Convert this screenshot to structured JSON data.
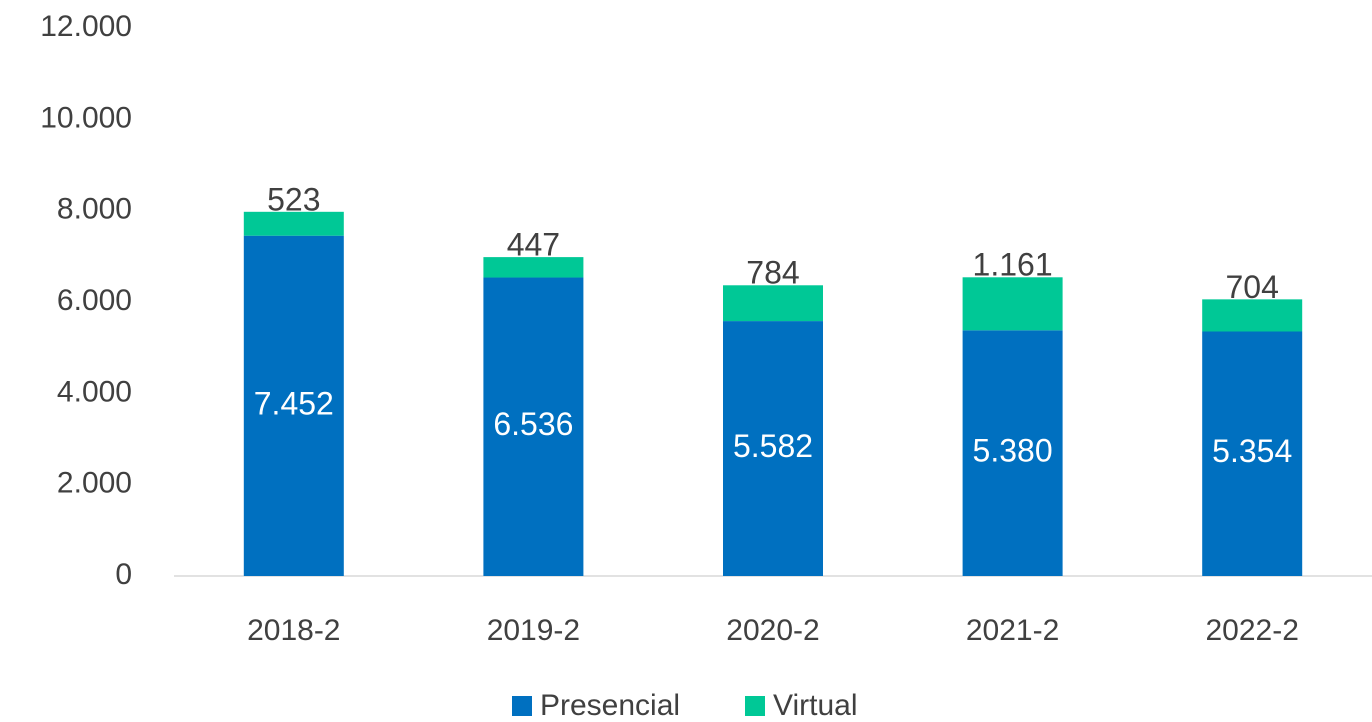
{
  "chart_data": {
    "type": "stacked_bar",
    "categories": [
      "2018-2",
      "2019-2",
      "2020-2",
      "2021-2",
      "2022-2"
    ],
    "series": [
      {
        "name": "Presencial",
        "color": "#0070c0",
        "values": [
          7452,
          6536,
          5582,
          5380,
          5354
        ],
        "value_labels": [
          "7.452",
          "6.536",
          "5.582",
          "5.380",
          "5.354"
        ]
      },
      {
        "name": "Virtual",
        "color": "#00c896",
        "values": [
          523,
          447,
          784,
          1161,
          704
        ],
        "value_labels": [
          "523",
          "447",
          "784",
          "1.161",
          "704"
        ]
      }
    ],
    "ylim": [
      0,
      12000
    ],
    "yticks": [
      0,
      {
        "value": 2000,
        "label": "2.000"
      },
      {
        "value": 4000,
        "label": "4.000"
      },
      {
        "value": 6000,
        "label": "6.000"
      },
      {
        "value": 8000,
        "label": "8.000"
      },
      {
        "value": 10000,
        "label": "10.000"
      },
      {
        "value": 12000,
        "label": "12.000"
      }
    ],
    "grid": false,
    "legend": "bottom"
  }
}
